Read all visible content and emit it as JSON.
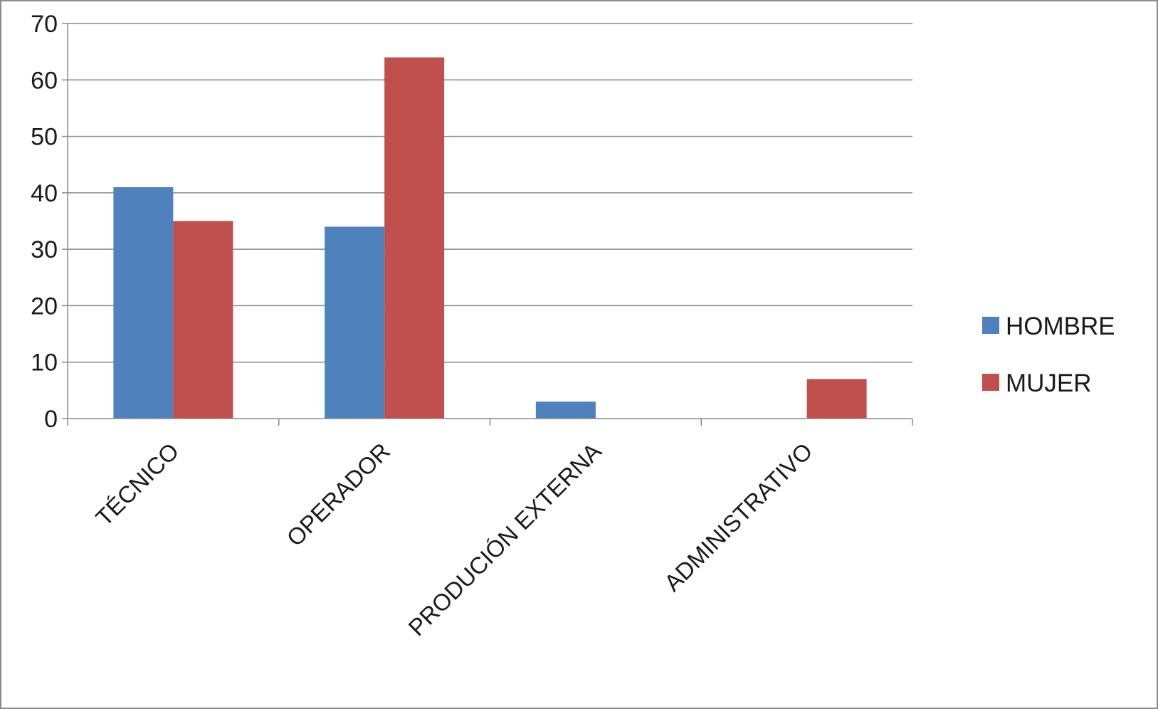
{
  "chart_data": {
    "type": "bar",
    "categories": [
      "TÉCNICO",
      "OPERADOR",
      "PRODUCIÓN EXTERNA",
      "ADMINISTRATIVO"
    ],
    "series": [
      {
        "name": "HOMBRE",
        "color": "#4f81bd",
        "values": [
          41,
          34,
          3,
          0
        ]
      },
      {
        "name": "MUJER",
        "color": "#c0504d",
        "values": [
          35,
          64,
          0,
          7
        ]
      }
    ],
    "yticks": [
      "0",
      "10",
      "20",
      "30",
      "40",
      "50",
      "60",
      "70"
    ],
    "ylim": [
      0,
      70
    ],
    "grid": true,
    "legend_position": "right",
    "title": "",
    "xlabel": "",
    "ylabel": ""
  }
}
